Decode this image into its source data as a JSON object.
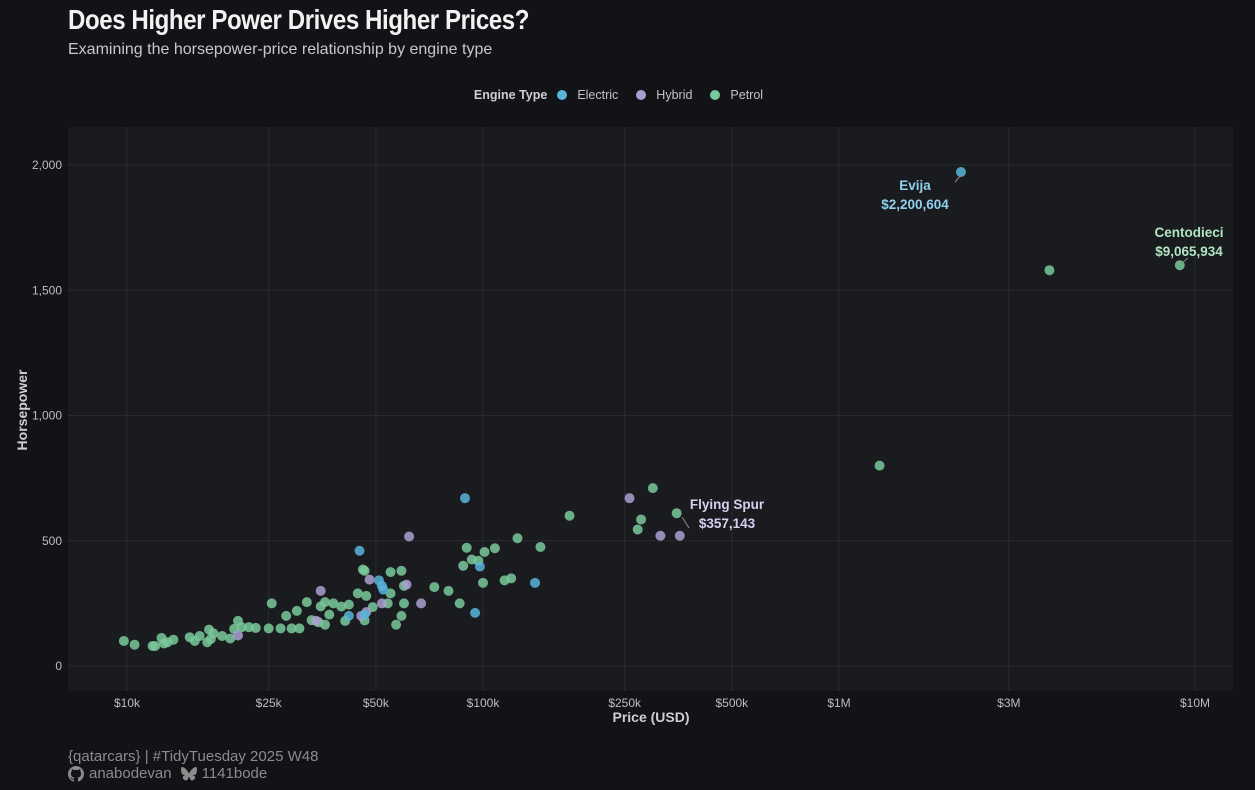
{
  "chart_data": {
    "type": "scatter",
    "title": "Does Higher Power Drives Higher Prices?",
    "subtitle": "Examining the horsepower-price relationship by engine type",
    "xlabel": "Price (USD)",
    "ylabel": "Horsepower",
    "xscale": "log10",
    "xlim": [
      8000,
      12500000
    ],
    "ylim": [
      -100,
      2150
    ],
    "xticks": [
      {
        "value": 10000,
        "label": "$10k"
      },
      {
        "value": 25000,
        "label": "$25k"
      },
      {
        "value": 50000,
        "label": "$50k"
      },
      {
        "value": 100000,
        "label": "$100k"
      },
      {
        "value": 250000,
        "label": "$250k"
      },
      {
        "value": 500000,
        "label": "$500k"
      },
      {
        "value": 1000000,
        "label": "$1M"
      },
      {
        "value": 3000000,
        "label": "$3M"
      },
      {
        "value": 10000000,
        "label": "$10M"
      }
    ],
    "yticks": [
      {
        "value": 0,
        "label": "0"
      },
      {
        "value": 500,
        "label": "500"
      },
      {
        "value": 1000,
        "label": "1,000"
      },
      {
        "value": 1500,
        "label": "1,500"
      },
      {
        "value": 2000,
        "label": "2,000"
      }
    ],
    "grid": true,
    "legend": {
      "title": "Engine Type",
      "placement": "top-center",
      "entries": [
        {
          "name": "Electric",
          "color": "#58b4d9"
        },
        {
          "name": "Hybrid",
          "color": "#ab9fd1"
        },
        {
          "name": "Petrol",
          "color": "#79c99a"
        }
      ]
    },
    "series": [
      {
        "name": "Electric",
        "color": "#58b4d9",
        "points": [
          [
            2200604,
            1972
          ],
          [
            89000,
            670
          ],
          [
            45000,
            460
          ],
          [
            95000,
            212
          ],
          [
            140000,
            332
          ],
          [
            98000,
            397
          ],
          [
            51000,
            342
          ],
          [
            52000,
            320
          ],
          [
            52500,
            305
          ],
          [
            42000,
            200
          ],
          [
            46500,
            205
          ]
        ]
      },
      {
        "name": "Hybrid",
        "color": "#ab9fd1",
        "points": [
          [
            357143,
            520
          ],
          [
            258000,
            670
          ],
          [
            315000,
            520
          ],
          [
            62000,
            517
          ],
          [
            35000,
            300
          ],
          [
            48000,
            345
          ],
          [
            61000,
            325
          ],
          [
            67000,
            250
          ],
          [
            52000,
            250
          ],
          [
            45500,
            200
          ],
          [
            47000,
            215
          ],
          [
            34000,
            180
          ],
          [
            20500,
            122
          ]
        ]
      },
      {
        "name": "Petrol",
        "color": "#79c99a",
        "points": [
          [
            9065934,
            1600
          ],
          [
            3900000,
            1580
          ],
          [
            1300000,
            800
          ],
          [
            300000,
            710
          ],
          [
            350000,
            610
          ],
          [
            278000,
            585
          ],
          [
            272000,
            545
          ],
          [
            175000,
            600
          ],
          [
            125000,
            510
          ],
          [
            145000,
            475
          ],
          [
            108000,
            470
          ],
          [
            90000,
            472
          ],
          [
            101000,
            455
          ],
          [
            93000,
            425
          ],
          [
            97000,
            420
          ],
          [
            88000,
            400
          ],
          [
            100000,
            332
          ],
          [
            115000,
            342
          ],
          [
            120000,
            350
          ],
          [
            80000,
            300
          ],
          [
            73000,
            315
          ],
          [
            86000,
            250
          ],
          [
            59000,
            380
          ],
          [
            55000,
            375
          ],
          [
            46000,
            385
          ],
          [
            46500,
            380
          ],
          [
            60000,
            320
          ],
          [
            55000,
            290
          ],
          [
            44500,
            290
          ],
          [
            47000,
            280
          ],
          [
            60000,
            250
          ],
          [
            54000,
            250
          ],
          [
            49000,
            235
          ],
          [
            42000,
            245
          ],
          [
            40000,
            237
          ],
          [
            38000,
            250
          ],
          [
            36000,
            255
          ],
          [
            32000,
            255
          ],
          [
            35000,
            238
          ],
          [
            30000,
            220
          ],
          [
            28000,
            200
          ],
          [
            37000,
            205
          ],
          [
            41000,
            180
          ],
          [
            46500,
            182
          ],
          [
            33000,
            183
          ],
          [
            34500,
            175
          ],
          [
            36000,
            165
          ],
          [
            57000,
            165
          ],
          [
            59000,
            200
          ],
          [
            25500,
            250
          ],
          [
            20500,
            180
          ],
          [
            21000,
            155
          ],
          [
            23000,
            152
          ],
          [
            25000,
            150
          ],
          [
            27000,
            150
          ],
          [
            29000,
            150
          ],
          [
            30500,
            150
          ],
          [
            22000,
            155
          ],
          [
            20000,
            148
          ],
          [
            17000,
            145
          ],
          [
            17500,
            130
          ],
          [
            16000,
            120
          ],
          [
            18500,
            120
          ],
          [
            19500,
            110
          ],
          [
            17200,
            108
          ],
          [
            15000,
            115
          ],
          [
            13500,
            105
          ],
          [
            12500,
            112
          ],
          [
            13000,
            95
          ],
          [
            12000,
            80
          ],
          [
            11800,
            80
          ],
          [
            12700,
            90
          ],
          [
            16800,
            95
          ],
          [
            15500,
            100
          ],
          [
            9800,
            100
          ],
          [
            10500,
            85
          ]
        ]
      }
    ],
    "annotations": [
      {
        "name": "Evija",
        "price_label": "$2,200,604",
        "x": 2200604,
        "y": 1972,
        "series": "Electric",
        "text_color": "#8fd0ee"
      },
      {
        "name": "Centodieci",
        "price_label": "$9,065,934",
        "x": 9065934,
        "y": 1600,
        "series": "Petrol",
        "text_color": "#aee6c2"
      },
      {
        "name": "Flying Spur",
        "price_label": "$357,143",
        "x": 357143,
        "y": 520,
        "series": "Hybrid",
        "text_color": "#d6cff0"
      }
    ]
  },
  "caption": {
    "line1": "{qatarcars} | #TidyTuesday 2025 W48",
    "github_handle": "anabodevan",
    "bluesky_handle": "1141bode"
  }
}
